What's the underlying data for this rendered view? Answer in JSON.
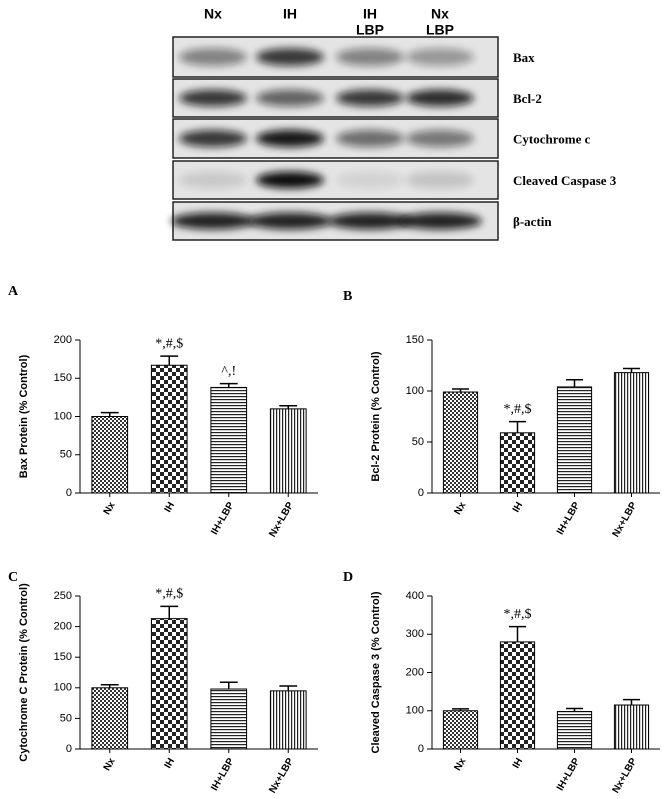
{
  "blot": {
    "lanes": [
      [
        "Nx"
      ],
      [
        "IH"
      ],
      [
        "IH",
        "LBP"
      ],
      [
        "Nx",
        "LBP"
      ]
    ],
    "bands": [
      "Bax",
      "Bcl-2",
      "Cytochrome c",
      "Cleaved Caspase 3",
      "β-actin"
    ]
  },
  "chart_data": [
    {
      "type": "bar",
      "panel": "A",
      "y_label": "Bax Protein (% Control)",
      "categories": [
        "Nx",
        "IH",
        "IH+LBP",
        "Nx+LBP"
      ],
      "values": [
        100,
        167,
        138,
        110
      ],
      "errors": [
        5,
        12,
        5,
        4
      ],
      "annotations": [
        null,
        "*,#,$",
        "^,!",
        null
      ],
      "ylim": [
        0,
        200
      ],
      "yticks": [
        0,
        50,
        100,
        150,
        200
      ]
    },
    {
      "type": "bar",
      "panel": "B",
      "y_label": "Bcl-2 Protein (% Control)",
      "categories": [
        "Nx",
        "IH",
        "IH+LBP",
        "Nx+LBP"
      ],
      "values": [
        99,
        59,
        104,
        118
      ],
      "errors": [
        3,
        11,
        7,
        4
      ],
      "annotations": [
        null,
        "*,#,$",
        null,
        null
      ],
      "ylim": [
        0,
        150
      ],
      "yticks": [
        0,
        50,
        100,
        150
      ]
    },
    {
      "type": "bar",
      "panel": "C",
      "y_label": "Cytochrome C Protein (% Control)",
      "categories": [
        "Nx",
        "IH",
        "IH+LBP",
        "Nx+LBP"
      ],
      "values": [
        100,
        213,
        98,
        95
      ],
      "errors": [
        5,
        20,
        11,
        8
      ],
      "annotations": [
        null,
        "*,#,$",
        null,
        null
      ],
      "ylim": [
        0,
        250
      ],
      "yticks": [
        0,
        50,
        100,
        150,
        200,
        250
      ]
    },
    {
      "type": "bar",
      "panel": "D",
      "y_label": "Cleaved  Caspase 3 (% Control)",
      "categories": [
        "Nx",
        "IH",
        "IH+LBP",
        "Nx+LBP"
      ],
      "values": [
        100,
        280,
        98,
        115
      ],
      "errors": [
        5,
        40,
        8,
        14
      ],
      "annotations": [
        null,
        "*,#,$",
        null,
        null
      ],
      "ylim": [
        0,
        400
      ],
      "yticks": [
        0,
        100,
        200,
        300,
        400
      ]
    }
  ]
}
